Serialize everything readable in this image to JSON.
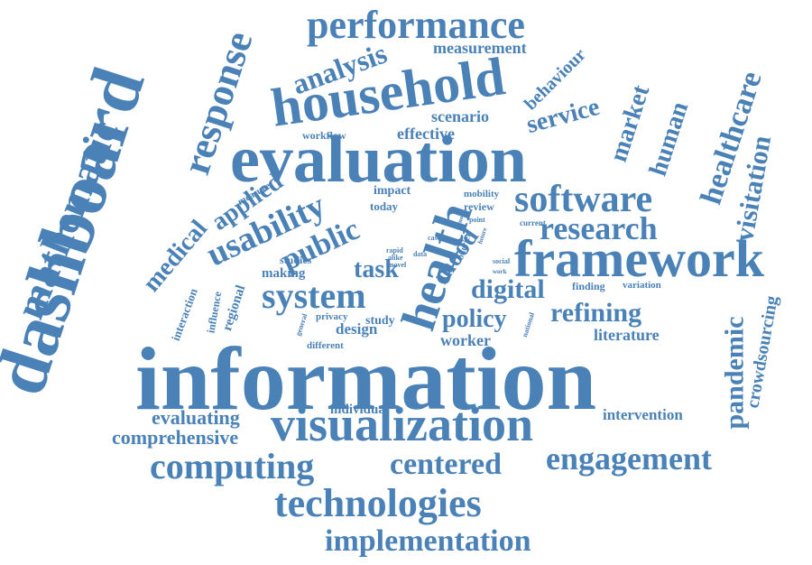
{
  "color": "#4a82b8",
  "words": [
    "information",
    "dashboard",
    "evaluation",
    "household",
    "framework",
    "visualization",
    "health",
    "performance",
    "mathematic",
    "technologies",
    "response",
    "software",
    "system",
    "computing",
    "usability",
    "research",
    "engagement",
    "implementation",
    "centered",
    "public",
    "analysis",
    "healthcare",
    "visitation",
    "pandemic",
    "digital",
    "medical",
    "refining",
    "mood",
    "service",
    "human",
    "applied",
    "policy",
    "market",
    "task",
    "crowdsourcing",
    "comprehensive",
    "evaluating",
    "measurement",
    "behaviour",
    "scenario",
    "effective",
    "literature",
    "intervention",
    "worker",
    "design",
    "individual",
    "interaction",
    "regional",
    "influence",
    "making",
    "studies",
    "study",
    "privacy",
    "different",
    "finding",
    "variation",
    "impact",
    "today",
    "workflow",
    "measure",
    "mobility",
    "review",
    "barrier",
    "novel",
    "point",
    "general",
    "rapid",
    "alike",
    "data",
    "case",
    "more",
    "future",
    "current",
    "social",
    "work",
    "national"
  ]
}
